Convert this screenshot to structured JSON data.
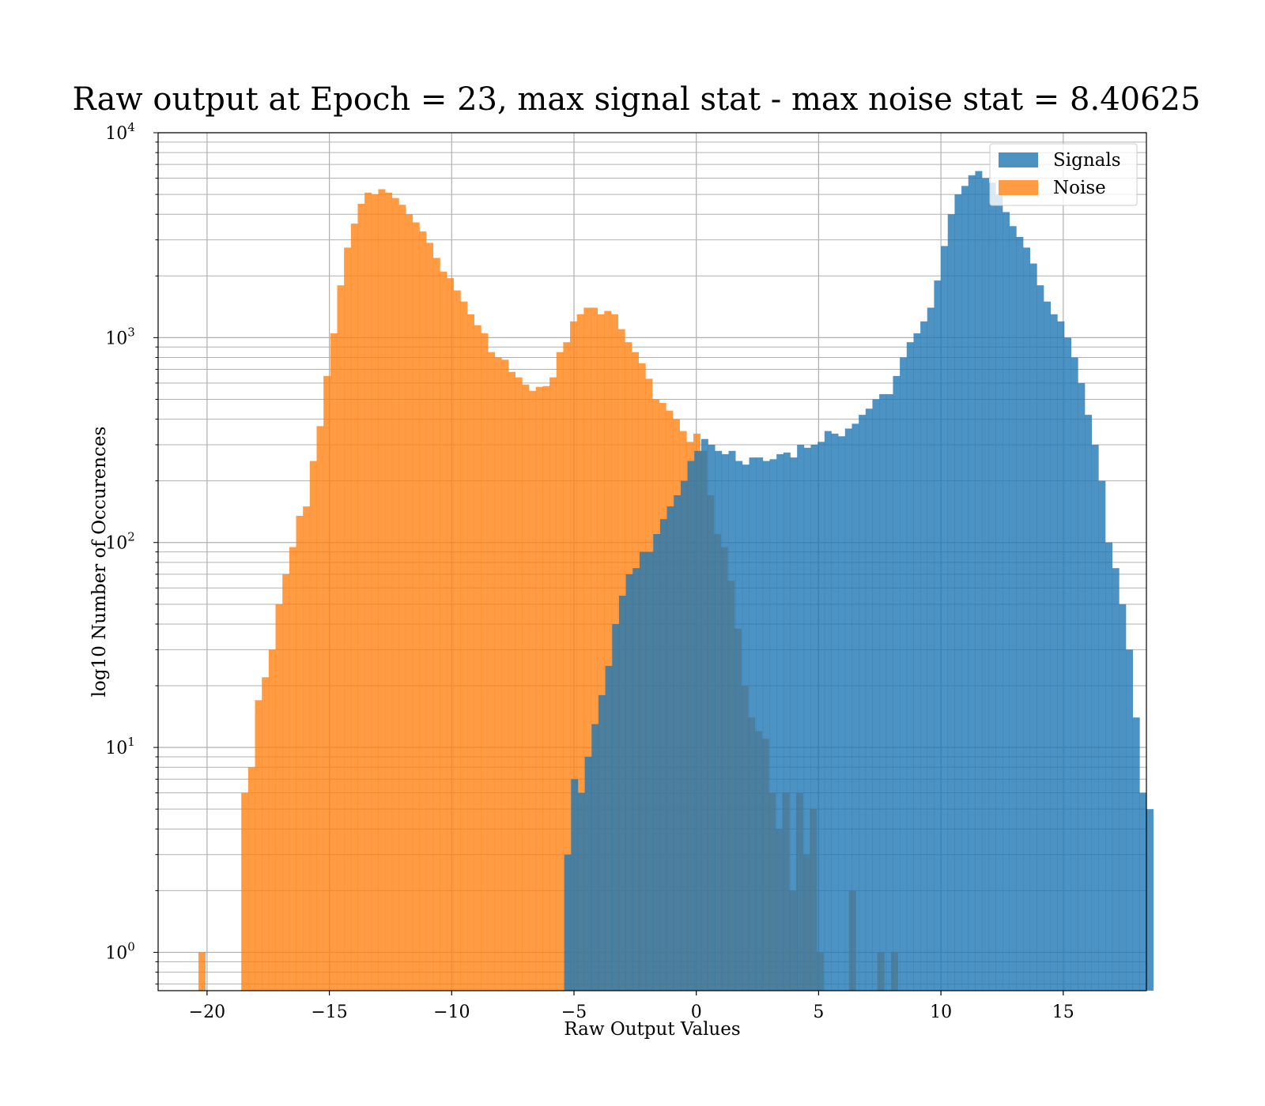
{
  "chart_data": {
    "type": "bar",
    "title": "Raw output at Epoch = 23, max signal stat - max noise stat = 8.40625",
    "xlabel": "Raw Output Values",
    "ylabel": "log10 Number of Occurences",
    "xlim": [
      -22.0,
      18.4
    ],
    "ylim": [
      0.65,
      10000
    ],
    "yscale": "log",
    "grid": true,
    "legend_position": "top-right",
    "bin_width": 0.28,
    "colors": {
      "signals": "#1f77b4",
      "noise": "#ff7f0e"
    },
    "x_ticks": [
      {
        "value": -20,
        "label": "−20"
      },
      {
        "value": -15,
        "label": "−15"
      },
      {
        "value": -10,
        "label": "−10"
      },
      {
        "value": -5,
        "label": "−5"
      },
      {
        "value": 0,
        "label": "0"
      },
      {
        "value": 5,
        "label": "5"
      },
      {
        "value": 10,
        "label": "10"
      },
      {
        "value": 15,
        "label": "15"
      }
    ],
    "y_ticks": [
      {
        "value": 1,
        "base": "10",
        "exp": "0"
      },
      {
        "value": 10,
        "base": "10",
        "exp": "1"
      },
      {
        "value": 100,
        "base": "10",
        "exp": "2"
      },
      {
        "value": 1000,
        "base": "10",
        "exp": "3"
      },
      {
        "value": 10000,
        "base": "10",
        "exp": "4"
      }
    ],
    "series": [
      {
        "name": "Noise",
        "color": "#ff7f0e",
        "alpha": 0.78,
        "bins": [
          [
            -20.35,
            1
          ],
          [
            -18.6,
            6
          ],
          [
            -18.32,
            8
          ],
          [
            -18.04,
            17
          ],
          [
            -17.76,
            22
          ],
          [
            -17.48,
            30
          ],
          [
            -17.2,
            50
          ],
          [
            -16.92,
            70
          ],
          [
            -16.64,
            95
          ],
          [
            -16.36,
            135
          ],
          [
            -16.08,
            150
          ],
          [
            -15.8,
            250
          ],
          [
            -15.52,
            370
          ],
          [
            -15.24,
            650
          ],
          [
            -14.96,
            1050
          ],
          [
            -14.68,
            1800
          ],
          [
            -14.4,
            2750
          ],
          [
            -14.12,
            3600
          ],
          [
            -13.84,
            4500
          ],
          [
            -13.56,
            5100
          ],
          [
            -13.28,
            5000
          ],
          [
            -13.0,
            5300
          ],
          [
            -12.72,
            5100
          ],
          [
            -12.44,
            4800
          ],
          [
            -12.16,
            4450
          ],
          [
            -11.88,
            4000
          ],
          [
            -11.6,
            3650
          ],
          [
            -11.32,
            3300
          ],
          [
            -11.04,
            2900
          ],
          [
            -10.76,
            2450
          ],
          [
            -10.48,
            2100
          ],
          [
            -10.2,
            1950
          ],
          [
            -9.92,
            1700
          ],
          [
            -9.64,
            1500
          ],
          [
            -9.36,
            1300
          ],
          [
            -9.08,
            1150
          ],
          [
            -8.8,
            1050
          ],
          [
            -8.52,
            850
          ],
          [
            -8.24,
            800
          ],
          [
            -7.96,
            780
          ],
          [
            -7.68,
            680
          ],
          [
            -7.4,
            640
          ],
          [
            -7.12,
            590
          ],
          [
            -6.84,
            550
          ],
          [
            -6.56,
            575
          ],
          [
            -6.28,
            580
          ],
          [
            -6.0,
            640
          ],
          [
            -5.72,
            850
          ],
          [
            -5.44,
            950
          ],
          [
            -5.16,
            1200
          ],
          [
            -4.88,
            1300
          ],
          [
            -4.6,
            1400
          ],
          [
            -4.32,
            1400
          ],
          [
            -4.04,
            1300
          ],
          [
            -3.76,
            1350
          ],
          [
            -3.48,
            1300
          ],
          [
            -3.2,
            1100
          ],
          [
            -2.92,
            950
          ],
          [
            -2.64,
            850
          ],
          [
            -2.36,
            750
          ],
          [
            -2.08,
            630
          ],
          [
            -1.8,
            500
          ],
          [
            -1.52,
            480
          ],
          [
            -1.24,
            440
          ],
          [
            -0.96,
            400
          ],
          [
            -0.68,
            350
          ],
          [
            -0.4,
            310
          ],
          [
            -0.12,
            340
          ],
          [
            0.16,
            280
          ],
          [
            0.44,
            170
          ],
          [
            0.72,
            110
          ],
          [
            1.0,
            95
          ],
          [
            1.28,
            65
          ],
          [
            1.56,
            38
          ],
          [
            1.84,
            20
          ],
          [
            2.12,
            14
          ],
          [
            2.4,
            12
          ],
          [
            2.68,
            11
          ],
          [
            2.96,
            6
          ],
          [
            3.24,
            4
          ],
          [
            3.52,
            6
          ],
          [
            3.8,
            2
          ],
          [
            4.08,
            6
          ],
          [
            4.36,
            3
          ],
          [
            4.64,
            5
          ],
          [
            4.92,
            1
          ],
          [
            6.24,
            2
          ],
          [
            7.4,
            1
          ],
          [
            7.96,
            1
          ]
        ]
      },
      {
        "name": "Signals",
        "color": "#1f77b4",
        "alpha": 0.8,
        "bins": [
          [
            -5.4,
            3
          ],
          [
            -5.12,
            7
          ],
          [
            -4.84,
            6
          ],
          [
            -4.56,
            9
          ],
          [
            -4.28,
            13
          ],
          [
            -4.0,
            18
          ],
          [
            -3.72,
            25
          ],
          [
            -3.44,
            40
          ],
          [
            -3.16,
            55
          ],
          [
            -2.88,
            70
          ],
          [
            -2.6,
            75
          ],
          [
            -2.32,
            90
          ],
          [
            -2.04,
            90
          ],
          [
            -1.76,
            110
          ],
          [
            -1.48,
            130
          ],
          [
            -1.2,
            150
          ],
          [
            -0.92,
            170
          ],
          [
            -0.64,
            200
          ],
          [
            -0.36,
            250
          ],
          [
            -0.08,
            280
          ],
          [
            0.2,
            320
          ],
          [
            0.48,
            300
          ],
          [
            0.76,
            280
          ],
          [
            1.04,
            270
          ],
          [
            1.32,
            280
          ],
          [
            1.6,
            250
          ],
          [
            1.88,
            240
          ],
          [
            2.16,
            260
          ],
          [
            2.44,
            260
          ],
          [
            2.72,
            250
          ],
          [
            3.0,
            255
          ],
          [
            3.28,
            270
          ],
          [
            3.56,
            275
          ],
          [
            3.84,
            260
          ],
          [
            4.12,
            300
          ],
          [
            4.4,
            290
          ],
          [
            4.68,
            300
          ],
          [
            4.96,
            310
          ],
          [
            5.24,
            350
          ],
          [
            5.52,
            340
          ],
          [
            5.8,
            330
          ],
          [
            6.08,
            360
          ],
          [
            6.36,
            380
          ],
          [
            6.64,
            420
          ],
          [
            6.92,
            450
          ],
          [
            7.2,
            500
          ],
          [
            7.48,
            530
          ],
          [
            7.76,
            530
          ],
          [
            8.04,
            650
          ],
          [
            8.32,
            800
          ],
          [
            8.6,
            950
          ],
          [
            8.88,
            1050
          ],
          [
            9.16,
            1200
          ],
          [
            9.44,
            1400
          ],
          [
            9.72,
            1900
          ],
          [
            10.0,
            2800
          ],
          [
            10.28,
            4000
          ],
          [
            10.56,
            5000
          ],
          [
            10.84,
            5500
          ],
          [
            11.12,
            6200
          ],
          [
            11.4,
            6500
          ],
          [
            11.68,
            6000
          ],
          [
            11.96,
            5700
          ],
          [
            12.24,
            5000
          ],
          [
            12.52,
            4100
          ],
          [
            12.8,
            3500
          ],
          [
            13.08,
            3100
          ],
          [
            13.36,
            2750
          ],
          [
            13.64,
            2300
          ],
          [
            13.92,
            1800
          ],
          [
            14.2,
            1500
          ],
          [
            14.48,
            1300
          ],
          [
            14.76,
            1200
          ],
          [
            15.04,
            1000
          ],
          [
            15.32,
            800
          ],
          [
            15.6,
            600
          ],
          [
            15.88,
            420
          ],
          [
            16.16,
            300
          ],
          [
            16.44,
            200
          ],
          [
            16.72,
            100
          ],
          [
            17.0,
            75
          ],
          [
            17.28,
            50
          ],
          [
            17.56,
            30
          ],
          [
            17.84,
            14
          ],
          [
            18.12,
            6
          ],
          [
            18.4,
            5
          ]
        ]
      }
    ]
  }
}
